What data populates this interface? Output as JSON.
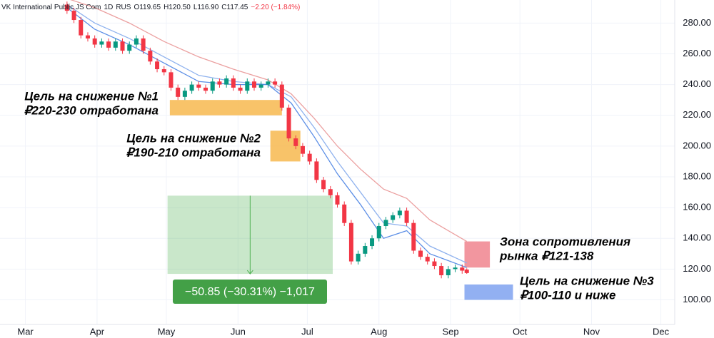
{
  "chart_data": {
    "type": "candlestick",
    "header": {
      "symbol": "VK International Public JS Com",
      "interval": "1D",
      "exchange": "RUS",
      "open": "O119.65",
      "high": "H120.50",
      "low": "L116.90",
      "close": "C117.45",
      "change": "−2.20 (−1.84%)"
    },
    "x": [
      18,
      21,
      24,
      27,
      30,
      33,
      36,
      39,
      42,
      45,
      48,
      51,
      54,
      57,
      60,
      63,
      66,
      69,
      72,
      75,
      78,
      81,
      84,
      87,
      90,
      93,
      96,
      99,
      102,
      105,
      108,
      111,
      114,
      117,
      120,
      123,
      126,
      129,
      132,
      135,
      138,
      141,
      144,
      147,
      150,
      153,
      156,
      159,
      162,
      165,
      168,
      171,
      174,
      177,
      180,
      183,
      186,
      189,
      191
    ],
    "open": [
      292,
      288,
      282,
      272,
      270,
      266,
      268,
      264,
      268,
      262,
      266,
      270,
      262,
      255,
      250,
      248,
      238,
      232,
      236,
      240,
      238,
      236,
      242,
      240,
      244,
      238,
      236,
      242,
      238,
      240,
      242,
      240,
      225,
      205,
      200,
      195,
      190,
      178,
      172,
      168,
      162,
      150,
      125,
      130,
      135,
      140,
      148,
      152,
      155,
      158,
      150,
      132,
      128,
      125,
      122,
      116,
      120,
      121,
      119.65
    ],
    "high": [
      294,
      290,
      284,
      274,
      272,
      270,
      270,
      270,
      270,
      268,
      272,
      272,
      264,
      257,
      252,
      250,
      240,
      238,
      242,
      242,
      240,
      244,
      244,
      246,
      246,
      240,
      244,
      244,
      242,
      244,
      244,
      242,
      227,
      207,
      202,
      197,
      192,
      180,
      174,
      170,
      164,
      152,
      132,
      137,
      142,
      150,
      154,
      157,
      160,
      160,
      152,
      134,
      130,
      127,
      124,
      122,
      123,
      123,
      120.5
    ],
    "low": [
      286,
      280,
      270,
      268,
      264,
      264,
      262,
      262,
      260,
      260,
      264,
      260,
      253,
      248,
      246,
      236,
      230,
      230,
      234,
      236,
      234,
      234,
      238,
      238,
      236,
      234,
      234,
      236,
      236,
      238,
      238,
      223,
      203,
      198,
      193,
      188,
      176,
      170,
      166,
      160,
      148,
      123,
      123,
      128,
      133,
      138,
      146,
      150,
      153,
      148,
      130,
      126,
      123,
      120,
      114,
      114,
      118,
      117,
      116.9
    ],
    "close": [
      288,
      282,
      272,
      270,
      266,
      268,
      264,
      268,
      262,
      266,
      270,
      262,
      255,
      250,
      248,
      238,
      232,
      236,
      240,
      238,
      236,
      242,
      240,
      244,
      238,
      236,
      242,
      238,
      240,
      242,
      240,
      225,
      205,
      200,
      195,
      190,
      178,
      172,
      168,
      162,
      150,
      125,
      130,
      135,
      140,
      148,
      152,
      155,
      158,
      150,
      132,
      128,
      125,
      122,
      116,
      120,
      121,
      119,
      117.45
    ],
    "up_color": "#089981",
    "down_color": "#f23645",
    "ma_x": [
      18,
      30,
      45,
      60,
      75,
      90,
      105,
      115,
      125,
      135,
      145,
      155,
      165,
      175,
      191
    ],
    "overlays": [
      {
        "color": "#eba0a0",
        "values": [
          296,
          290,
          280,
          268,
          258,
          250,
          243,
          234,
          218,
          200,
          185,
          172,
          166,
          152,
          138
        ]
      },
      {
        "color": "#8fb2ee",
        "values": [
          292,
          280,
          270,
          258,
          246,
          242,
          240,
          232,
          212,
          190,
          170,
          150,
          148,
          135,
          124
        ]
      },
      {
        "color": "#5b8ee6",
        "values": [
          290,
          276,
          266,
          254,
          242,
          240,
          240,
          228,
          206,
          182,
          162,
          140,
          145,
          130,
          121
        ]
      }
    ],
    "zones": [
      {
        "x": [
          62.5,
          111
        ],
        "y": [
          220,
          230
        ],
        "color": "#f7b84f",
        "lines": [
          "Цель на снижение №1",
          "₽220-230 отработана"
        ]
      },
      {
        "x": [
          106,
          119
        ],
        "y": [
          190,
          210
        ],
        "color": "#f7b84f",
        "lines": [
          "Цель на снижение №2",
          "₽190-210 отработана"
        ]
      },
      {
        "x": [
          190,
          201
        ],
        "y": [
          121,
          138
        ],
        "color": "#f0848e",
        "lines": [
          "Зона сопротивления",
          "рынка ₽121-138"
        ]
      },
      {
        "x": [
          190,
          211
        ],
        "y": [
          100,
          110
        ],
        "color": "#7fa2f0",
        "lines": [
          "Цель на снижение №3",
          "₽100-110 и ниже"
        ]
      }
    ],
    "measure": {
      "x": [
        61.5,
        133
      ],
      "y": [
        116.9,
        167.75
      ],
      "label": "−50.85 (−30.31%) −1,017"
    },
    "xlim": [
      -11,
      281
    ],
    "ylim": [
      84,
      295
    ],
    "xticks": [
      {
        "value": 0,
        "label": "Mar"
      },
      {
        "value": 31,
        "label": "Apr"
      },
      {
        "value": 61,
        "label": "May"
      },
      {
        "value": 92,
        "label": "Jun"
      },
      {
        "value": 122,
        "label": "Jul"
      },
      {
        "value": 153,
        "label": "Aug"
      },
      {
        "value": 184,
        "label": "Sep"
      },
      {
        "value": 214,
        "label": "Oct"
      },
      {
        "value": 245,
        "label": "Nov"
      },
      {
        "value": 275,
        "label": "Dec"
      }
    ],
    "yticks": [
      {
        "value": 100,
        "label": "100.00"
      },
      {
        "value": 120,
        "label": "120.00"
      },
      {
        "value": 140,
        "label": "140.00"
      },
      {
        "value": 160,
        "label": "160.00"
      },
      {
        "value": 180,
        "label": "180.00"
      },
      {
        "value": 200,
        "label": "200.00"
      },
      {
        "value": 220,
        "label": "220.00"
      },
      {
        "value": 240,
        "label": "240.00"
      },
      {
        "value": 260,
        "label": "260.00"
      },
      {
        "value": 280,
        "label": "280.00"
      }
    ],
    "grid": true
  }
}
